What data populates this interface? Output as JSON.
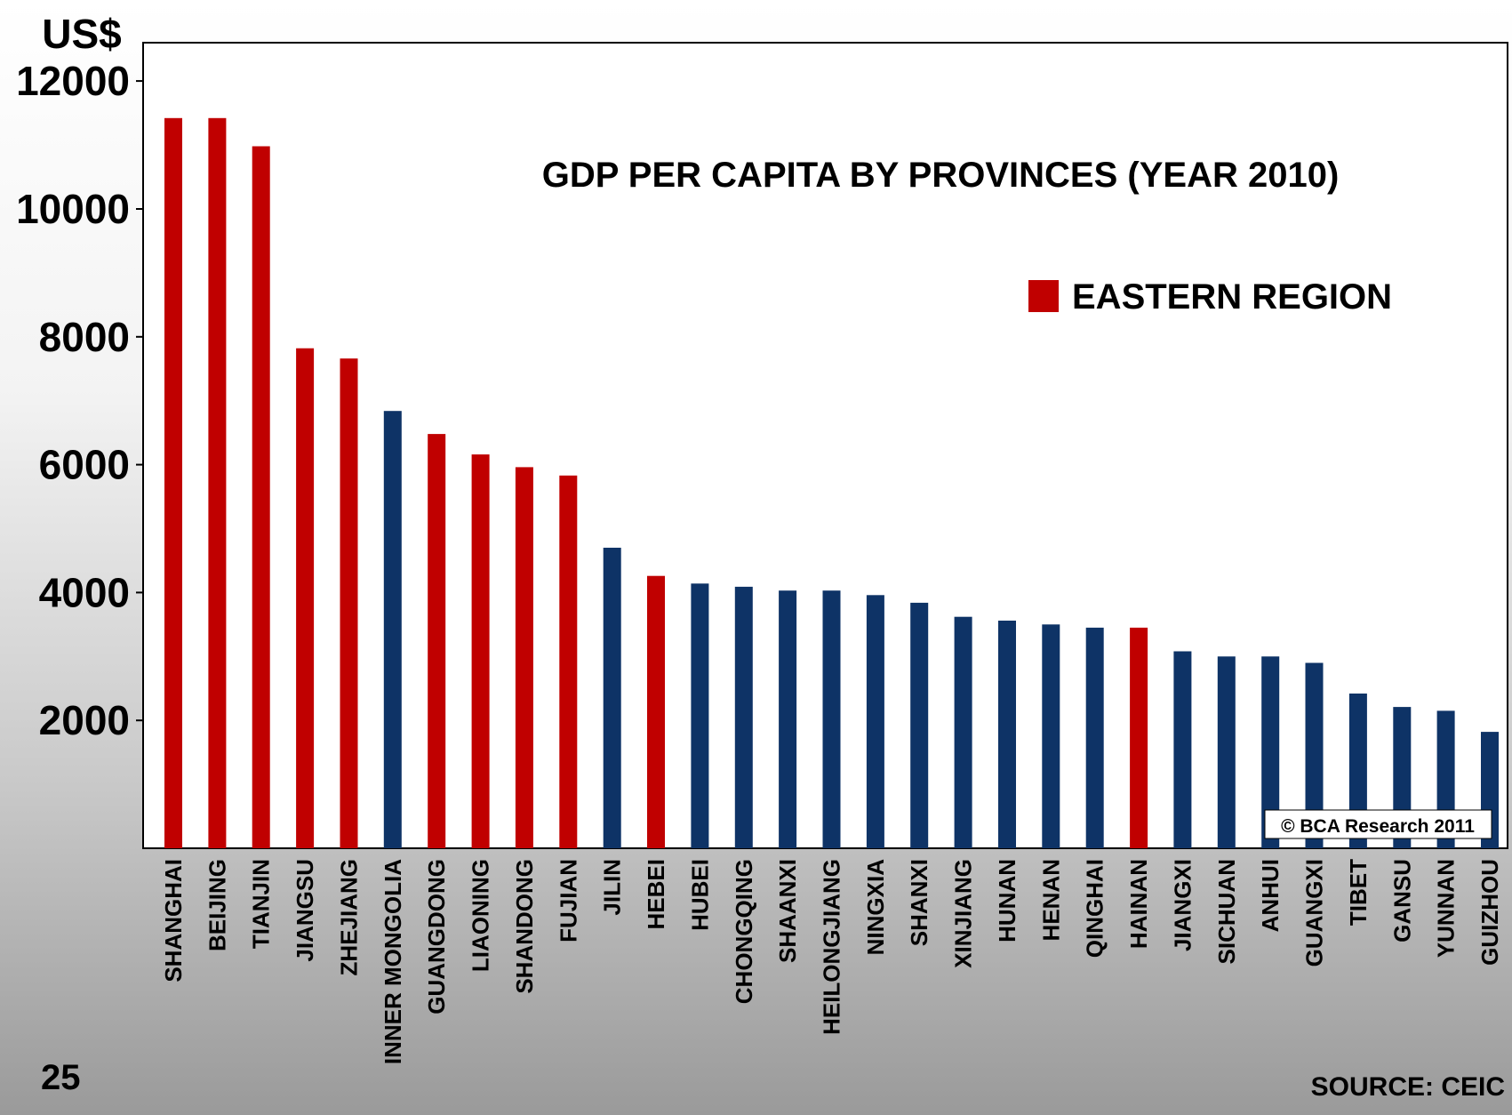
{
  "slide_number": "25",
  "source": "SOURCE: CEIC",
  "chart_data": {
    "type": "bar",
    "title": "GDP PER CAPITA BY PROVINCES (YEAR 2010)",
    "ylabel": "US$",
    "xlabel": "",
    "ylim": [
      0,
      12600
    ],
    "yticks": [
      2000,
      4000,
      6000,
      8000,
      10000,
      12000
    ],
    "grid": false,
    "legend": {
      "position": "top-right",
      "entries": [
        {
          "label": "EASTERN REGION",
          "color": "#c00000"
        }
      ]
    },
    "colors": {
      "eastern": "#c00000",
      "other": "#0e3366"
    },
    "copyright": "© BCA Research 2011",
    "categories": [
      "SHANGHAI",
      "BEIJING",
      "TIANJIN",
      "JIANGSU",
      "ZHEJIANG",
      "INNER MONGOLIA",
      "GUANGDONG",
      "LIAONING",
      "SHANDONG",
      "FUJIAN",
      "JILIN",
      "HEBEI",
      "HUBEI",
      "CHONGQING",
      "SHAANXI",
      "HEILONGJIANG",
      "NINGXIA",
      "SHANXI",
      "XINJIANG",
      "HUNAN",
      "HENAN",
      "QINGHAI",
      "HAINAN",
      "JIANGXI",
      "SICHUAN",
      "ANHUI",
      "GUANGXI",
      "TIBET",
      "GANSU",
      "YUNNAN",
      "GUIZHOU"
    ],
    "values": [
      11420,
      11420,
      10980,
      7820,
      7660,
      6840,
      6480,
      6160,
      5960,
      5830,
      4700,
      4260,
      4140,
      4090,
      4030,
      4030,
      3960,
      3840,
      3620,
      3560,
      3500,
      3450,
      3450,
      3080,
      3000,
      3000,
      2900,
      2420,
      2210,
      2150,
      1820
    ],
    "eastern": [
      true,
      true,
      true,
      true,
      true,
      false,
      true,
      true,
      true,
      true,
      false,
      true,
      false,
      false,
      false,
      false,
      false,
      false,
      false,
      false,
      false,
      false,
      true,
      false,
      false,
      false,
      false,
      false,
      false,
      false,
      false
    ]
  }
}
